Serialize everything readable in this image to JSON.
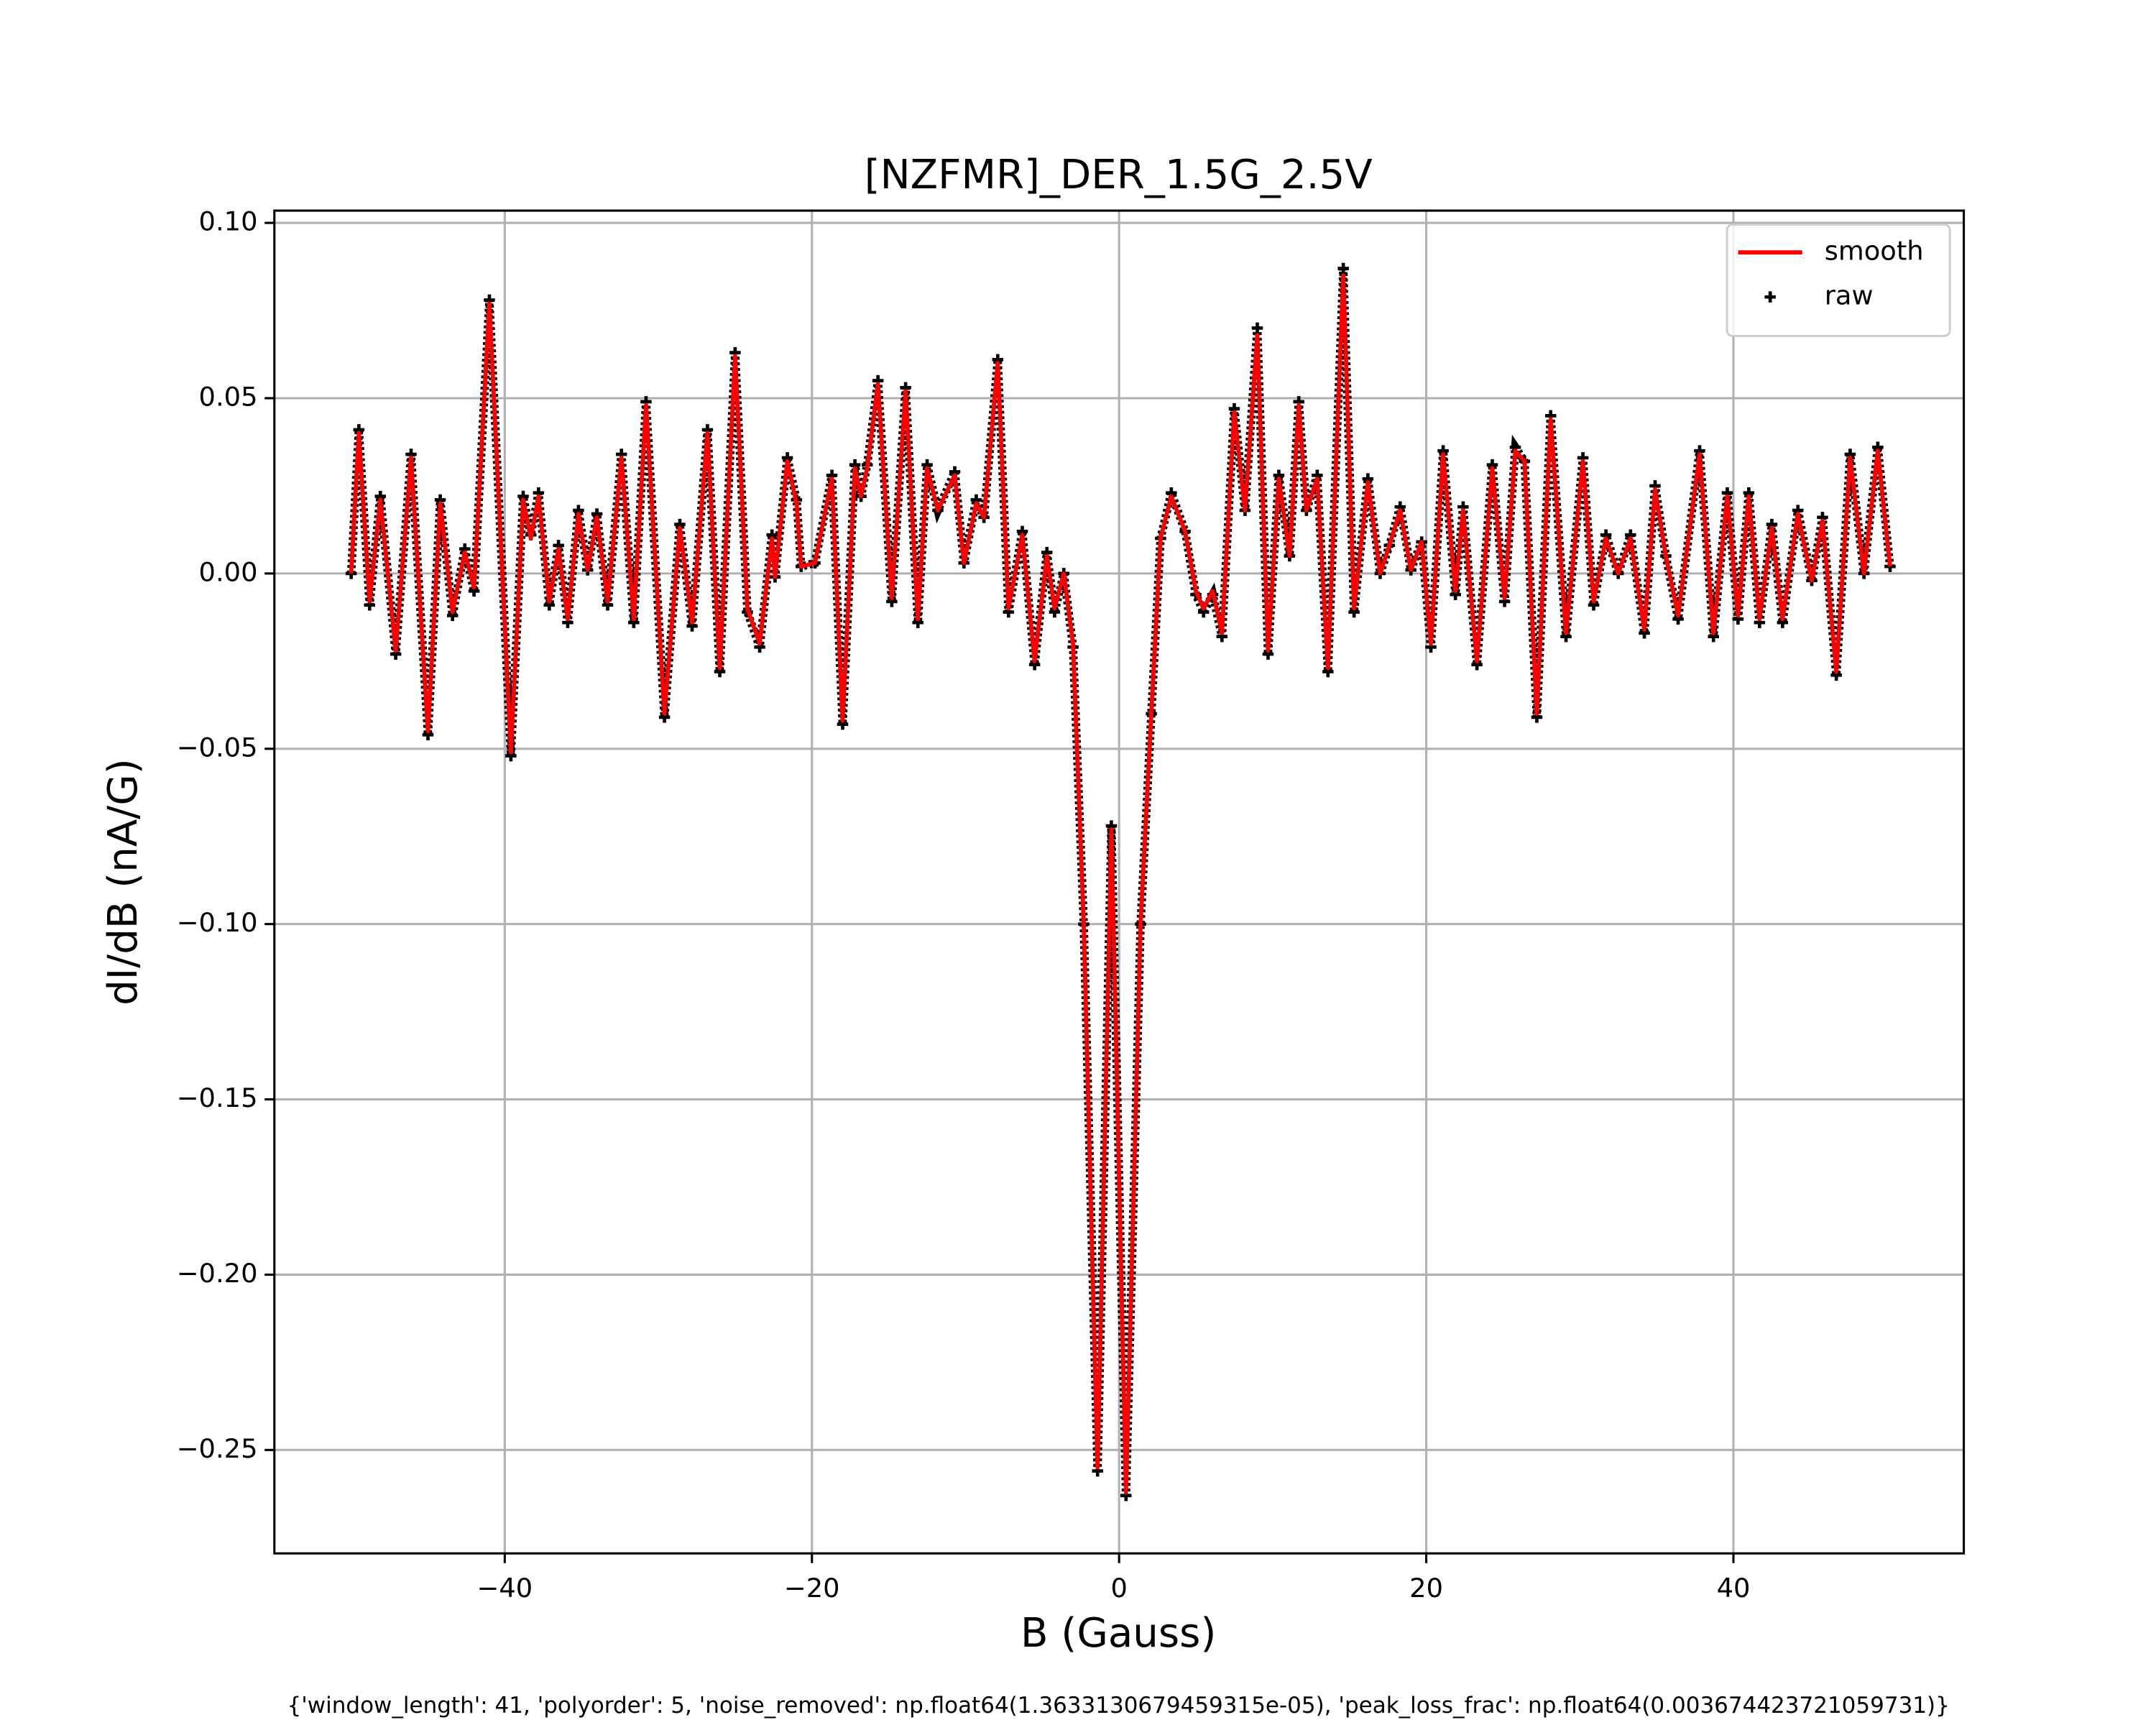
{
  "chart_data": {
    "type": "line",
    "title": "[NZFMR]_DER_1.5G_2.5V",
    "x_label": "B (Gauss)",
    "y_label": "dI/dB (nA/G)",
    "footnote": "{'window_length': 41, 'polyorder': 5, 'noise_removed': np.float64(1.3633130679459315e-05), 'peak_loss_frac': np.float64(0.003674423721059731)}",
    "x": [
      -50,
      -49.5,
      -48.8,
      -48.1,
      -47.1,
      -46.1,
      -45.0,
      -44.2,
      -43.4,
      -42.6,
      -42.0,
      -41.0,
      -39.6,
      -38.8,
      -38.3,
      -37.8,
      -37.1,
      -36.5,
      -35.9,
      -35.2,
      -34.6,
      -34.0,
      -33.3,
      -32.4,
      -31.6,
      -30.8,
      -29.6,
      -28.6,
      -27.8,
      -26.8,
      -26.0,
      -25.0,
      -24.2,
      -23.4,
      -22.6,
      -22.4,
      -21.6,
      -21.0,
      -20.7,
      -19.8,
      -18.7,
      -18.0,
      -17.2,
      -16.8,
      -16.4,
      -15.7,
      -14.8,
      -13.9,
      -13.1,
      -12.5,
      -11.8,
      -10.7,
      -10.1,
      -9.3,
      -8.8,
      -7.9,
      -7.2,
      -6.3,
      -5.5,
      -4.7,
      -4.2,
      -3.6,
      -3.0,
      -2.3,
      -1.4,
      -0.5,
      0.45,
      1.4,
      2.1,
      2.7,
      3.4,
      4.3,
      5.0,
      5.5,
      6.1,
      6.7,
      7.5,
      8.2,
      9.0,
      9.7,
      10.4,
      11.1,
      11.7,
      12.2,
      12.9,
      13.6,
      14.6,
      15.3,
      16.2,
      17.0,
      17.6,
      18.3,
      19.0,
      19.7,
      20.3,
      21.1,
      21.9,
      22.4,
      23.3,
      24.3,
      25.1,
      25.8,
      26.4,
      27.2,
      28.1,
      29.1,
      30.2,
      30.9,
      31.7,
      32.5,
      33.3,
      34.2,
      34.9,
      35.6,
      36.4,
      37.8,
      38.7,
      39.6,
      40.3,
      41.0,
      41.7,
      42.5,
      43.2,
      44.2,
      45.1,
      45.8,
      46.7,
      47.6,
      48.5,
      49.4,
      50.2
    ],
    "series": [
      {
        "name": "smooth",
        "type": "line",
        "color": "#ff0000",
        "values": [
          0.0,
          0.04,
          -0.008,
          0.021,
          -0.022,
          0.033,
          -0.045,
          0.02,
          -0.011,
          0.006,
          -0.004,
          0.077,
          -0.051,
          0.021,
          0.01,
          0.022,
          -0.008,
          0.007,
          -0.013,
          0.017,
          0.001,
          0.016,
          -0.008,
          0.033,
          -0.013,
          0.048,
          -0.04,
          0.013,
          -0.014,
          0.04,
          -0.027,
          0.062,
          -0.01,
          -0.02,
          0.01,
          -0.001,
          0.032,
          0.02,
          0.002,
          0.003,
          0.027,
          -0.042,
          0.03,
          0.022,
          0.03,
          0.054,
          -0.007,
          0.052,
          -0.013,
          0.03,
          0.018,
          0.028,
          0.003,
          0.02,
          0.016,
          0.06,
          -0.01,
          0.011,
          -0.025,
          0.005,
          -0.01,
          0.0,
          -0.02,
          -0.1,
          -0.255,
          -0.073,
          -0.262,
          -0.1,
          -0.04,
          0.01,
          0.022,
          0.012,
          -0.005,
          -0.01,
          -0.005,
          -0.017,
          0.046,
          0.018,
          0.068,
          -0.022,
          0.027,
          0.005,
          0.048,
          0.018,
          0.027,
          -0.027,
          0.085,
          -0.01,
          0.026,
          0.0,
          0.008,
          0.018,
          0.001,
          0.009,
          -0.02,
          0.034,
          -0.005,
          0.018,
          -0.025,
          0.03,
          -0.007,
          0.035,
          0.032,
          -0.04,
          0.044,
          -0.017,
          0.032,
          -0.008,
          0.01,
          0.0,
          0.01,
          -0.016,
          0.024,
          0.005,
          -0.012,
          0.034,
          -0.017,
          0.022,
          -0.012,
          0.022,
          -0.013,
          0.013,
          -0.013,
          0.017,
          -0.002,
          0.015,
          -0.028,
          0.033,
          0.0,
          0.035,
          0.002
        ]
      },
      {
        "name": "raw",
        "type": "scatter",
        "color": "#000000",
        "values": [
          0.0,
          0.041,
          -0.009,
          0.022,
          -0.023,
          0.034,
          -0.046,
          0.021,
          -0.012,
          0.007,
          -0.005,
          0.078,
          -0.052,
          0.022,
          0.011,
          0.023,
          -0.009,
          0.008,
          -0.014,
          0.018,
          0.001,
          0.017,
          -0.009,
          0.034,
          -0.014,
          0.049,
          -0.041,
          0.014,
          -0.015,
          0.041,
          -0.028,
          0.063,
          -0.011,
          -0.021,
          0.011,
          -0.001,
          0.033,
          0.021,
          0.002,
          0.003,
          0.028,
          -0.043,
          0.031,
          0.022,
          0.031,
          0.055,
          -0.008,
          0.053,
          -0.014,
          0.031,
          0.018,
          0.029,
          0.003,
          0.021,
          0.016,
          0.061,
          -0.011,
          0.012,
          -0.026,
          0.006,
          -0.011,
          0.0,
          -0.021,
          -0.1,
          -0.256,
          -0.072,
          -0.263,
          -0.1,
          -0.04,
          0.01,
          0.023,
          0.012,
          -0.006,
          -0.011,
          -0.006,
          -0.018,
          0.047,
          0.018,
          0.07,
          -0.023,
          0.028,
          0.005,
          0.049,
          0.018,
          0.028,
          -0.028,
          0.087,
          -0.011,
          0.027,
          0.0,
          0.008,
          0.019,
          0.001,
          0.009,
          -0.021,
          0.035,
          -0.006,
          0.019,
          -0.026,
          0.031,
          -0.008,
          0.036,
          0.032,
          -0.041,
          0.045,
          -0.018,
          0.033,
          -0.009,
          0.011,
          0.0,
          0.011,
          -0.017,
          0.025,
          0.005,
          -0.013,
          0.035,
          -0.018,
          0.023,
          -0.013,
          0.023,
          -0.014,
          0.014,
          -0.014,
          0.018,
          -0.002,
          0.016,
          -0.029,
          0.034,
          0.0,
          0.036,
          0.002
        ]
      }
    ],
    "xlim": [
      -55,
      55
    ],
    "ylim": [
      -0.2795,
      0.1035
    ],
    "xticks": [
      {
        "value": -40,
        "label": "−40"
      },
      {
        "value": -20,
        "label": "−20"
      },
      0,
      20,
      40
    ],
    "yticks": [
      {
        "value": -0.25,
        "label": "−0.25"
      },
      {
        "value": -0.2,
        "label": "−0.20"
      },
      {
        "value": -0.15,
        "label": "−0.15"
      },
      {
        "value": -0.1,
        "label": "−0.10"
      },
      {
        "value": -0.05,
        "label": "−0.05"
      },
      {
        "value": 0,
        "label": "0.00"
      },
      0.05,
      {
        "value": 0.1,
        "label": "0.10"
      }
    ],
    "grid": true,
    "legend": "upper right"
  }
}
